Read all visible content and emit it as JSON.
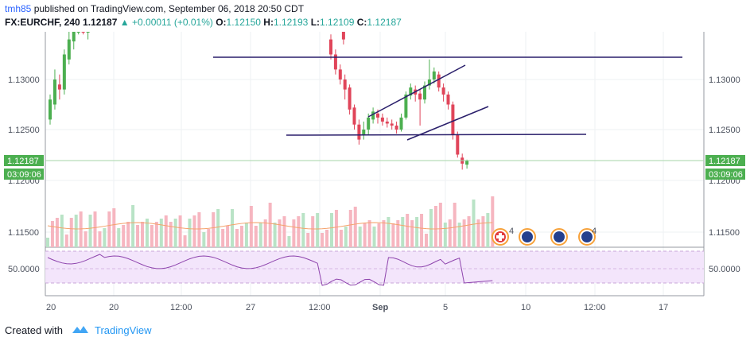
{
  "header": {
    "username": "tmh85",
    "published_text": "published on TradingView.com, September 06, 2018 20:50 CDT",
    "symbol": "FX:EURCHF, 240",
    "last_price": "1.12187",
    "change": "+0.00011 (+0.01%)",
    "open_label": "O:",
    "open": "1.12150",
    "high_label": "H:",
    "high": "1.12193",
    "low_label": "L:",
    "low": "1.12109",
    "close_label": "C:",
    "close": "1.12187"
  },
  "price_axis": {
    "ticks": [
      "1.13000",
      "1.12500",
      "1.12000",
      "1.11500"
    ],
    "last_price_tag": "1.12187",
    "countdown_tag": "03:09:06"
  },
  "rsi_axis": {
    "ticks": [
      "50.0000"
    ]
  },
  "time_axis": {
    "labels": [
      "20",
      "20",
      "12:00",
      "27",
      "12:00",
      "Sep",
      "5",
      "10",
      "12:00",
      "17"
    ]
  },
  "events": {
    "badge_count_1": "4",
    "badge_count_2": "4"
  },
  "footer": {
    "created_with": "Created with",
    "brand": "TradingView"
  },
  "colors": {
    "up": "#4caf50",
    "down": "#e0455a",
    "line": "#2a1f6b",
    "rsi": "#8e44ad",
    "rsi_band": "#f3e5fb",
    "tag": "#4caf50"
  }
}
